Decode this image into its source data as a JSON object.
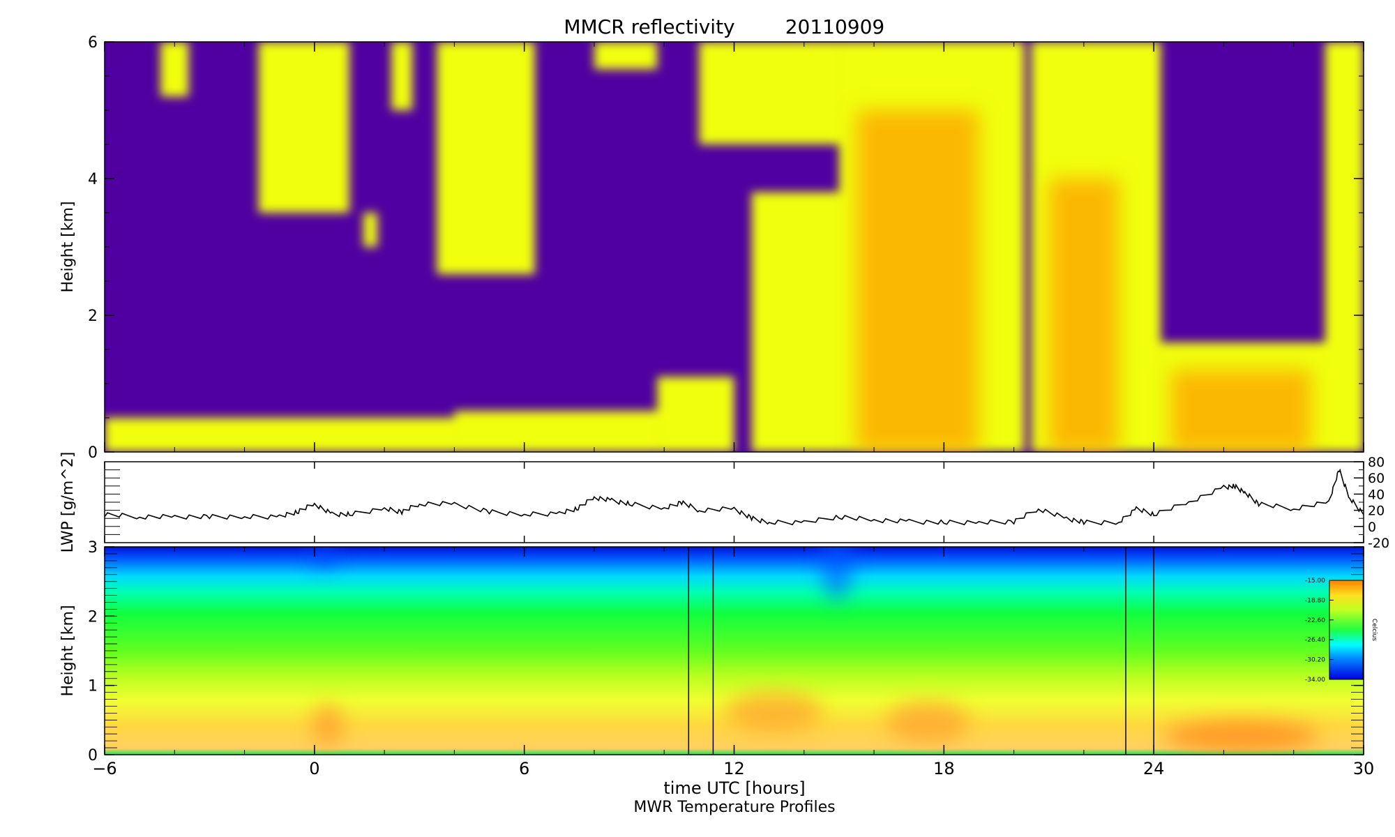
{
  "chart_data": [
    {
      "type": "heatmap",
      "title": "MMCR reflectivity",
      "date": "20110909",
      "ylabel": "Height [km]",
      "ylim": [
        0,
        6
      ],
      "yticks": [
        0,
        2,
        4,
        6
      ],
      "xlim": [
        -6,
        30
      ],
      "colors": {
        "background": "#5000a0",
        "cloud_edge": "#f0ff10",
        "cloud_core": "#ffa000"
      },
      "cloud_regions": [
        {
          "x0": -6,
          "x1": 4.0,
          "y0": 0,
          "y1": 0.5
        },
        {
          "x0": -4.4,
          "x1": -3.6,
          "y0": 5.2,
          "y1": 6
        },
        {
          "x0": -1.6,
          "x1": 1.0,
          "y0": 3.5,
          "y1": 6
        },
        {
          "x0": 1.4,
          "x1": 1.8,
          "y0": 3.0,
          "y1": 3.5
        },
        {
          "x0": 2.2,
          "x1": 2.8,
          "y0": 5.0,
          "y1": 6
        },
        {
          "x0": 3.5,
          "x1": 6.3,
          "y0": 2.6,
          "y1": 6
        },
        {
          "x0": 8.0,
          "x1": 9.8,
          "y0": 5.6,
          "y1": 6
        },
        {
          "x0": 4.0,
          "x1": 9.8,
          "y0": 0,
          "y1": 0.6
        },
        {
          "x0": 9.8,
          "x1": 12.0,
          "y0": 0,
          "y1": 1.1
        },
        {
          "x0": 11.0,
          "x1": 15.0,
          "y0": 4.5,
          "y1": 6
        },
        {
          "x0": 12.5,
          "x1": 15.0,
          "y0": 0,
          "y1": 3.8
        },
        {
          "x0": 15.0,
          "x1": 20.3,
          "y0": 0,
          "y1": 6
        },
        {
          "x0": 20.5,
          "x1": 24.2,
          "y0": 0,
          "y1": 6
        },
        {
          "x0": 24.2,
          "x1": 29.2,
          "y0": 0,
          "y1": 1.6
        },
        {
          "x0": 28.9,
          "x1": 30.0,
          "y0": 0,
          "y1": 6
        }
      ],
      "core_regions": [
        {
          "x0": 15.5,
          "x1": 19.0,
          "y0": 0,
          "y1": 5.0
        },
        {
          "x0": 21.0,
          "x1": 23.0,
          "y0": 0,
          "y1": 4.0
        },
        {
          "x0": 24.5,
          "x1": 28.5,
          "y0": 0,
          "y1": 1.2
        }
      ]
    },
    {
      "type": "line",
      "ylabel": "LWP [g/m^2]",
      "ylim": [
        -20,
        80
      ],
      "yticks": [
        -20,
        0,
        20,
        40,
        60,
        80
      ],
      "xlim": [
        -6,
        30
      ],
      "series": [
        {
          "x": [
            -6,
            -5,
            -4,
            -3,
            -2,
            -1,
            -0.5,
            0,
            0.5,
            1,
            2,
            2.5,
            3,
            4,
            5,
            6,
            7,
            7.5,
            8,
            8.5,
            9,
            10,
            10.5,
            11,
            12,
            12.5,
            13,
            14,
            15,
            16,
            17,
            18,
            19,
            20,
            20.7,
            21.5,
            22,
            23,
            23.5,
            24,
            25,
            26,
            26.3,
            26.6,
            27,
            28,
            29,
            29.3,
            29.6,
            30
          ],
          "y": [
            15,
            12,
            12,
            12,
            12,
            12,
            18,
            28,
            15,
            15,
            22,
            18,
            28,
            28,
            18,
            15,
            16,
            22,
            36,
            32,
            28,
            22,
            30,
            20,
            22,
            10,
            5,
            5,
            12,
            8,
            6,
            5,
            5,
            6,
            22,
            10,
            5,
            5,
            22,
            15,
            30,
            48,
            50,
            42,
            28,
            22,
            30,
            70,
            35,
            15
          ]
        }
      ]
    },
    {
      "type": "heatmap",
      "ylabel": "Height [km]",
      "ylim": [
        0,
        3
      ],
      "yticks": [
        0,
        1,
        2,
        3
      ],
      "xlim": [
        -6,
        30
      ],
      "xticks": [
        -6,
        0,
        6,
        12,
        18,
        24,
        30
      ],
      "xlabel": "time UTC [hours]",
      "caption": "MWR Temperature Profiles",
      "colorbar": {
        "ticks": [
          "-15.00",
          "-18.80",
          "-22.60",
          "-26.40",
          "-30.20",
          "-34.00"
        ],
        "label": "Celcius",
        "range": [
          -34,
          -15
        ]
      },
      "gaps": [
        {
          "x0": 10.7,
          "x1": 11.4
        },
        {
          "x0": 23.2,
          "x1": 24.0
        }
      ],
      "profile": [
        {
          "height_km": 0.0,
          "temp_c": -22.0
        },
        {
          "height_km": 0.3,
          "temp_c": -16.5
        },
        {
          "height_km": 0.7,
          "temp_c": -17.5
        },
        {
          "height_km": 1.2,
          "temp_c": -20.5
        },
        {
          "height_km": 1.8,
          "temp_c": -24.0
        },
        {
          "height_km": 2.3,
          "temp_c": -27.5
        },
        {
          "height_km": 2.7,
          "temp_c": -31.0
        },
        {
          "height_km": 3.0,
          "temp_c": -33.5
        }
      ]
    }
  ]
}
